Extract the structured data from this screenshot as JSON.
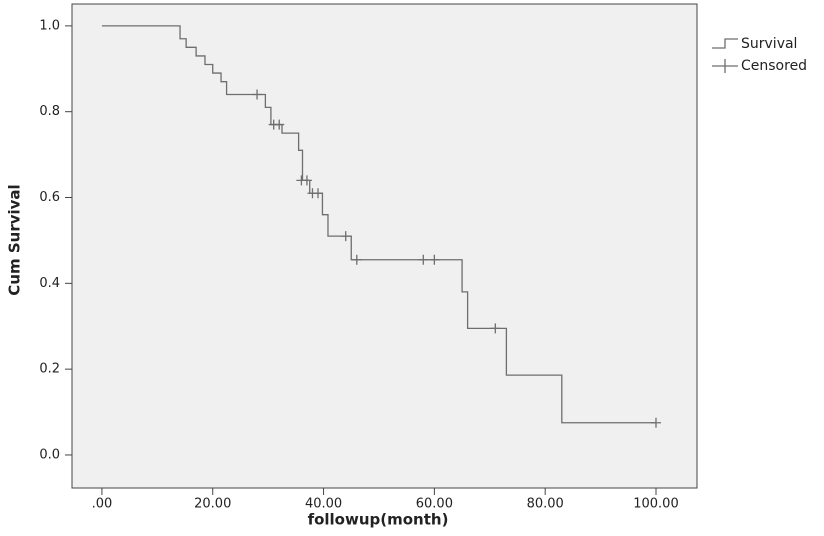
{
  "chart_data": {
    "type": "step",
    "x_label": "followup(month)",
    "y_label": "Cum Survival",
    "xlim": [
      -5.4,
      107.4
    ],
    "ylim": [
      -0.077,
      1.051
    ],
    "xticks": [
      {
        "value": 0,
        "label": ".00"
      },
      {
        "value": 20,
        "label": "20.00"
      },
      {
        "value": 40,
        "label": "40.00"
      },
      {
        "value": 60,
        "label": "60.00"
      },
      {
        "value": 80,
        "label": "80.00"
      },
      {
        "value": 100,
        "label": "100.00"
      }
    ],
    "yticks": [
      {
        "value": 0,
        "label": "0.0"
      },
      {
        "value": 0.2,
        "label": "0.2"
      },
      {
        "value": 0.4,
        "label": "0.4"
      },
      {
        "value": 0.6,
        "label": "0.6"
      },
      {
        "value": 0.8,
        "label": "0.8"
      },
      {
        "value": 1,
        "label": "1.0"
      }
    ],
    "grid": false,
    "legend": "right",
    "series": [
      {
        "name": "Survival",
        "color": "#6e6e6e",
        "x": [
          0,
          14.1,
          15.2,
          17.0,
          18.6,
          20.0,
          21.5,
          22.5,
          29.5,
          30.5,
          32.5,
          35.5,
          36.2,
          37.5,
          39.8,
          40.8,
          45.0,
          65.0,
          66.0,
          73.0,
          83.0
        ],
        "values": [
          1.0,
          0.97,
          0.95,
          0.93,
          0.91,
          0.89,
          0.87,
          0.84,
          0.81,
          0.77,
          0.75,
          0.71,
          0.64,
          0.61,
          0.56,
          0.51,
          0.455,
          0.38,
          0.295,
          0.186,
          0.075
        ]
      },
      {
        "name": "Censored",
        "color": "#6e6e6e",
        "marker": "+",
        "x": [
          28.0,
          31.0,
          32.0,
          36.0,
          37.0,
          38.0,
          39.0,
          44.0,
          46.0,
          58.0,
          60.0,
          71.0,
          100.0
        ],
        "values": [
          0.84,
          0.77,
          0.77,
          0.64,
          0.64,
          0.61,
          0.61,
          0.51,
          0.455,
          0.455,
          0.455,
          0.295,
          0.075
        ]
      }
    ]
  }
}
